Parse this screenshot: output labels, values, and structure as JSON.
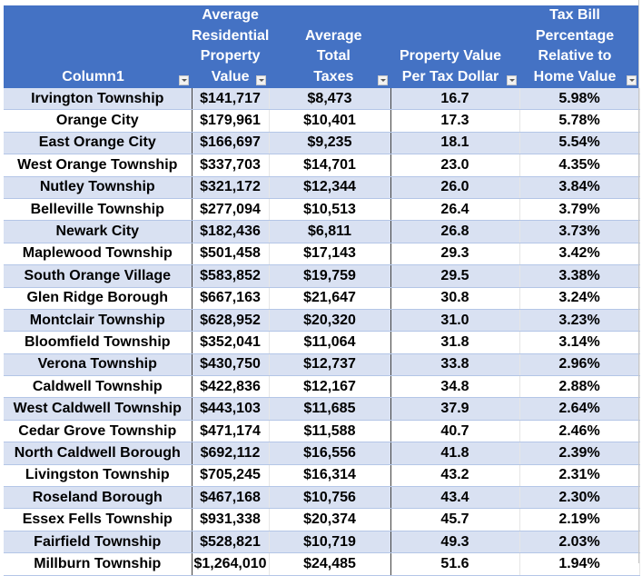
{
  "table": {
    "headers": [
      {
        "label": "Column1"
      },
      {
        "label": "Average Residential Property Value"
      },
      {
        "label": "Average Total Taxes"
      },
      {
        "label": "Property Value Per Tax Dollar"
      },
      {
        "label": "Tax Bill Percentage Relative to Home Value"
      }
    ],
    "colors": {
      "header_bg": "#4472C4",
      "header_text": "#FFFFFF",
      "band": "#D9E1F2",
      "row": "#FFFFFF"
    },
    "rows": [
      [
        "Irvington Township",
        "$141,717",
        "$8,473",
        "16.7",
        "5.98%"
      ],
      [
        "Orange City",
        "$179,961",
        "$10,401",
        "17.3",
        "5.78%"
      ],
      [
        "East Orange City",
        "$166,697",
        "$9,235",
        "18.1",
        "5.54%"
      ],
      [
        "West Orange Township",
        "$337,703",
        "$14,701",
        "23.0",
        "4.35%"
      ],
      [
        "Nutley Township",
        "$321,172",
        "$12,344",
        "26.0",
        "3.84%"
      ],
      [
        "Belleville Township",
        "$277,094",
        "$10,513",
        "26.4",
        "3.79%"
      ],
      [
        "Newark City",
        "$182,436",
        "$6,811",
        "26.8",
        "3.73%"
      ],
      [
        "Maplewood Township",
        "$501,458",
        "$17,143",
        "29.3",
        "3.42%"
      ],
      [
        "South Orange Village",
        "$583,852",
        "$19,759",
        "29.5",
        "3.38%"
      ],
      [
        "Glen Ridge Borough",
        "$667,163",
        "$21,647",
        "30.8",
        "3.24%"
      ],
      [
        "Montclair Township",
        "$628,952",
        "$20,320",
        "31.0",
        "3.23%"
      ],
      [
        "Bloomfield Township",
        "$352,041",
        "$11,064",
        "31.8",
        "3.14%"
      ],
      [
        "Verona Township",
        "$430,750",
        "$12,737",
        "33.8",
        "2.96%"
      ],
      [
        "Caldwell Township",
        "$422,836",
        "$12,167",
        "34.8",
        "2.88%"
      ],
      [
        "West Caldwell Township",
        "$443,103",
        "$11,685",
        "37.9",
        "2.64%"
      ],
      [
        "Cedar Grove Township",
        "$471,174",
        "$11,588",
        "40.7",
        "2.46%"
      ],
      [
        "North Caldwell Borough",
        "$692,112",
        "$16,556",
        "41.8",
        "2.39%"
      ],
      [
        "Livingston Township",
        "$705,245",
        "$16,314",
        "43.2",
        "2.31%"
      ],
      [
        "Roseland Borough",
        "$467,168",
        "$10,756",
        "43.4",
        "2.30%"
      ],
      [
        "Essex Fells Township",
        "$931,338",
        "$20,374",
        "45.7",
        "2.19%"
      ],
      [
        "Fairfield Township",
        "$528,821",
        "$10,719",
        "49.3",
        "2.03%"
      ],
      [
        "Millburn Township",
        "$1,264,010",
        "$24,485",
        "51.6",
        "1.94%"
      ]
    ]
  }
}
